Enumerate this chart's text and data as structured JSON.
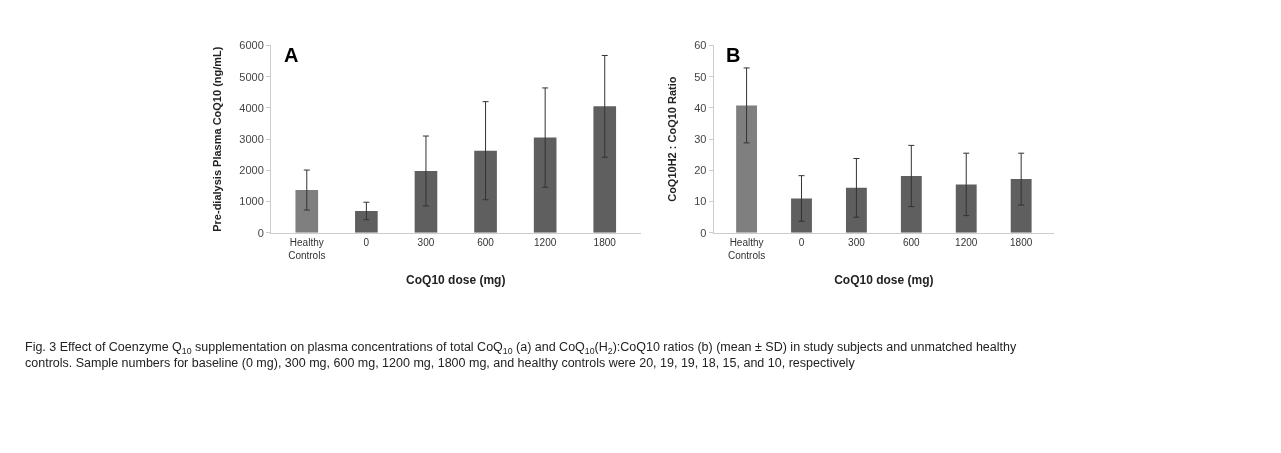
{
  "chart_data": [
    {
      "type": "bar",
      "title": "A",
      "xlabel": "CoQ10 dose (mg)",
      "ylabel": "Pre-dialysis Plasma CoQ10 (ng/mL)",
      "categories": [
        "Healthy Controls",
        "0",
        "300",
        "600",
        "1200",
        "1800"
      ],
      "values": [
        1370,
        700,
        1980,
        2630,
        3050,
        4050
      ],
      "errors": [
        640,
        280,
        1120,
        1570,
        1590,
        1630
      ],
      "colors": [
        "#7f7f7f",
        "#5f5f5f",
        "#5f5f5f",
        "#5f5f5f",
        "#5f5f5f",
        "#5f5f5f"
      ],
      "ylim": [
        0,
        6000
      ],
      "yticks": [
        0,
        1000,
        2000,
        3000,
        4000,
        5000,
        6000
      ],
      "annotations": [
        "Fig. 3 Effect of Coenzyme Q$_{10}$ supplementation on plasma concentrations of total CoQ$_{10}$ (a) and CoQ$_{10}$(H$_{2}$):CoQ10 ratios (b) (mean ± SD) in study subjects and unmatched healthy controls. Sample numbers for baseline (0 mg), 300 mg, 600 mg, 1200 mg, 1800 mg, and healthy controls were 20, 19, 19, 18, 15, and 10, respectively"
      ]
    },
    {
      "type": "bar",
      "title": "B",
      "xlabel": "CoQ10 dose (mg)",
      "ylabel": "CoQ10H2 : CoQ10 Ratio",
      "categories": [
        "Healthy Controls",
        "0",
        "300",
        "600",
        "1200",
        "1800"
      ],
      "values": [
        40.8,
        11,
        14.4,
        18.2,
        15.5,
        17.2
      ],
      "errors": [
        12,
        7.3,
        9.4,
        9.8,
        10,
        8.3
      ],
      "colors": [
        "#7f7f7f",
        "#5f5f5f",
        "#5f5f5f",
        "#5f5f5f",
        "#5f5f5f",
        "#5f5f5f"
      ],
      "ylim": [
        0,
        60
      ],
      "yticks": [
        0,
        10,
        20,
        30,
        40,
        50,
        60
      ]
    }
  ]
}
